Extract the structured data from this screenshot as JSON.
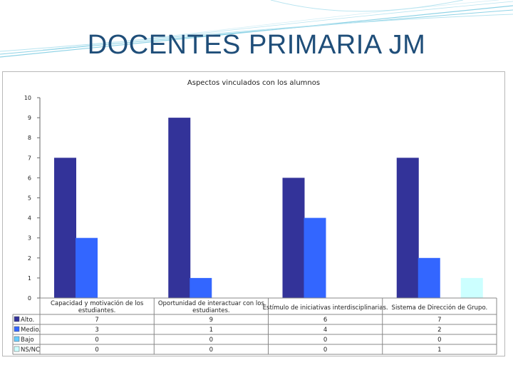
{
  "slide": {
    "title": "DOCENTES PRIMARIA JM"
  },
  "colors": {
    "title": "#1f4e79",
    "swoosh": "#8fd3e6",
    "series": [
      "#333399",
      "#3366ff",
      "#66ccff",
      "#ccffff"
    ]
  },
  "chart_data": {
    "type": "bar",
    "title": "Aspectos vinculados con los alumnos",
    "xlabel": "",
    "ylabel": "",
    "ylim": [
      0,
      10
    ],
    "yticks": [
      0,
      1,
      2,
      3,
      4,
      5,
      6,
      7,
      8,
      9,
      10
    ],
    "grid": false,
    "legend": "data table below chart",
    "categories": [
      [
        "Capacidad y motivación de los",
        "estudiantes."
      ],
      [
        "Oportunidad de interactuar con los",
        "estudiantes."
      ],
      [
        "Estímulo de iniciativas interdisciplinarias."
      ],
      [
        "Sistema de Dirección de Grupo."
      ]
    ],
    "series": [
      {
        "name": "Alto.",
        "values": [
          7,
          9,
          6,
          7
        ]
      },
      {
        "name": "Medio.",
        "values": [
          3,
          1,
          4,
          2
        ]
      },
      {
        "name": "Bajo",
        "values": [
          0,
          0,
          0,
          0
        ]
      },
      {
        "name": "NS/NC",
        "values": [
          0,
          0,
          0,
          1
        ]
      }
    ]
  }
}
